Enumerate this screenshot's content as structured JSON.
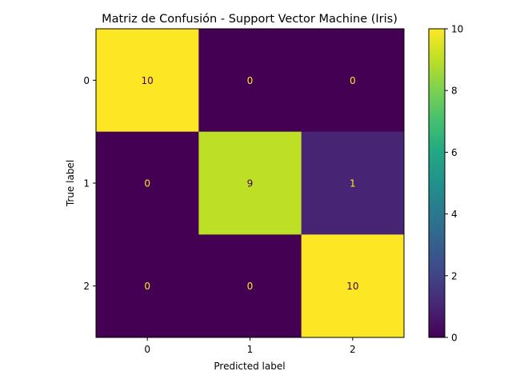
{
  "chart_data": {
    "type": "heatmap",
    "title": "Matriz de Confusión - Support Vector Machine (Iris)",
    "xlabel": "Predicted label",
    "ylabel": "True label",
    "x_categories": [
      "0",
      "1",
      "2"
    ],
    "y_categories": [
      "0",
      "1",
      "2"
    ],
    "matrix": [
      [
        10,
        0,
        0
      ],
      [
        0,
        9,
        1
      ],
      [
        0,
        0,
        10
      ]
    ],
    "colorbar": {
      "colormap": "viridis",
      "range": [
        0,
        10
      ],
      "ticks": [
        "0",
        "2",
        "4",
        "6",
        "8",
        "10"
      ]
    },
    "colors": {
      "low_cell_text": "#fde725",
      "high_cell_text": "#440154"
    }
  }
}
